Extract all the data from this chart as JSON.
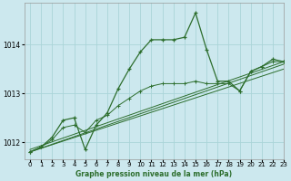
{
  "title": "Graphe pression niveau de la mer (hPa)",
  "bg_color": "#cce8ee",
  "grid_color": "#aad4d8",
  "line_color": "#2d6e2d",
  "xlim": [
    -0.5,
    23
  ],
  "ylim": [
    1011.65,
    1014.85
  ],
  "yticks": [
    1012,
    1013,
    1014
  ],
  "xticks": [
    0,
    1,
    2,
    3,
    4,
    5,
    6,
    7,
    8,
    9,
    10,
    11,
    12,
    13,
    14,
    15,
    16,
    17,
    18,
    19,
    20,
    21,
    22,
    23
  ],
  "main_line": {
    "x": [
      0,
      1,
      2,
      3,
      4,
      5,
      6,
      7,
      8,
      9,
      10,
      11,
      12,
      13,
      14,
      15,
      16,
      17,
      18,
      19,
      20,
      21,
      22,
      23
    ],
    "y": [
      1011.8,
      1011.9,
      1012.1,
      1012.45,
      1012.5,
      1011.85,
      1012.35,
      1012.6,
      1013.1,
      1013.5,
      1013.85,
      1014.1,
      1014.1,
      1014.1,
      1014.15,
      1014.65,
      1013.9,
      1013.25,
      1013.25,
      1013.05,
      1013.45,
      1013.55,
      1013.7,
      1013.65
    ]
  },
  "trend1": {
    "x": [
      0,
      23
    ],
    "y": [
      1011.8,
      1013.5
    ]
  },
  "trend2": {
    "x": [
      0,
      23
    ],
    "y": [
      1011.8,
      1013.6
    ]
  },
  "trend3": {
    "x": [
      0,
      23
    ],
    "y": [
      1011.85,
      1013.65
    ]
  },
  "secondary_line": {
    "x": [
      0,
      1,
      2,
      3,
      4,
      5,
      6,
      7,
      8,
      9,
      10,
      11,
      12,
      13,
      14,
      15,
      16,
      17,
      18,
      19,
      20,
      21,
      22,
      23
    ],
    "y": [
      1011.8,
      1011.9,
      1012.05,
      1012.3,
      1012.35,
      1012.2,
      1012.45,
      1012.55,
      1012.75,
      1012.9,
      1013.05,
      1013.15,
      1013.2,
      1013.2,
      1013.2,
      1013.25,
      1013.2,
      1013.2,
      1013.2,
      1013.05,
      1013.45,
      1013.55,
      1013.65,
      1013.65
    ]
  }
}
